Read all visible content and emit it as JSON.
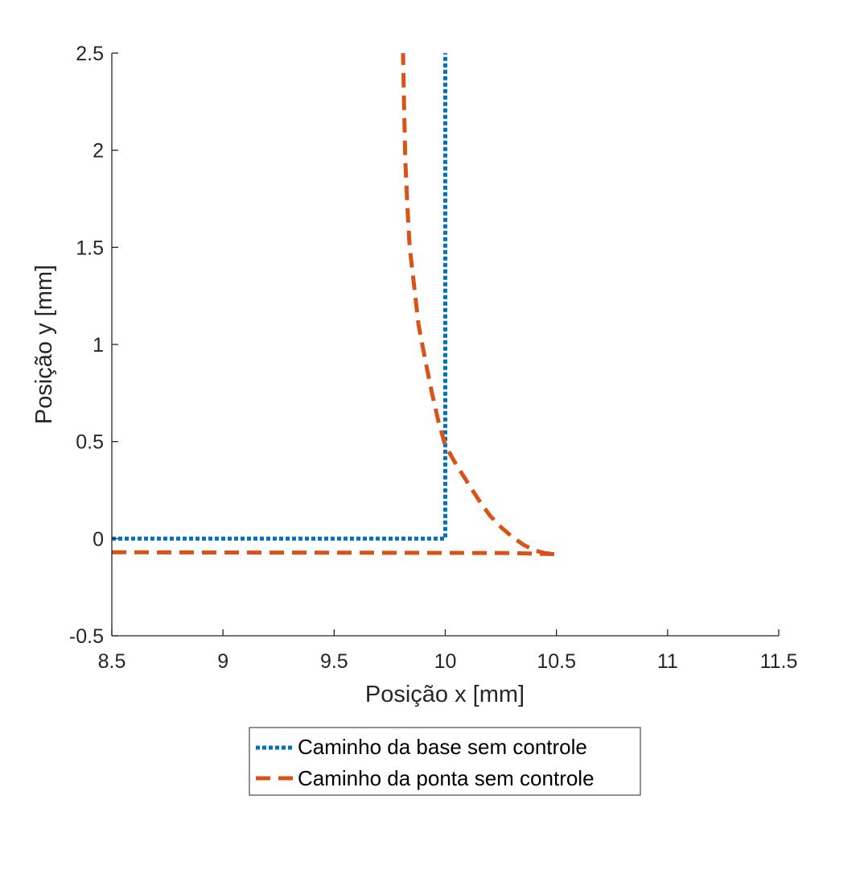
{
  "chart_data": {
    "type": "line",
    "title": "",
    "xlabel": "Posição x [mm]",
    "ylabel": "Posição y [mm]",
    "xlim": [
      8.5,
      11.5
    ],
    "ylim": [
      -0.5,
      2.5
    ],
    "xticks": [
      8.5,
      9,
      9.5,
      10,
      10.5,
      11,
      11.5
    ],
    "xtick_labels": [
      "8.5",
      "9",
      "9.5",
      "10",
      "10.5",
      "11",
      "11.5"
    ],
    "yticks": [
      -0.5,
      0,
      0.5,
      1,
      1.5,
      2,
      2.5
    ],
    "ytick_labels": [
      "-0.5",
      "0",
      "0.5",
      "1",
      "1.5",
      "2",
      "2.5"
    ],
    "grid": false,
    "legend_placement": "bottom-outside",
    "series": [
      {
        "name": "Caminho da base sem controle",
        "color": "#0072BD",
        "style": "dotted",
        "x": [
          8.5,
          10.0,
          10.0
        ],
        "y": [
          0.0,
          0.0,
          2.5
        ]
      },
      {
        "name": "Caminho da ponta sem controle",
        "color": "#D95319",
        "style": "dashed",
        "x": [
          8.5,
          9.0,
          9.5,
          10.0,
          10.3,
          10.5,
          10.45,
          10.4,
          10.35,
          10.3,
          10.25,
          10.2,
          10.15,
          10.1,
          10.05,
          10.0,
          9.97,
          9.94,
          9.91,
          9.88,
          9.86,
          9.84,
          9.83,
          9.82,
          9.815,
          9.81
        ],
        "y": [
          -0.07,
          -0.071,
          -0.072,
          -0.073,
          -0.074,
          -0.08,
          -0.075,
          -0.06,
          -0.03,
          0.01,
          0.06,
          0.12,
          0.2,
          0.29,
          0.38,
          0.48,
          0.6,
          0.75,
          0.92,
          1.1,
          1.3,
          1.5,
          1.7,
          1.95,
          2.2,
          2.5
        ]
      }
    ]
  }
}
